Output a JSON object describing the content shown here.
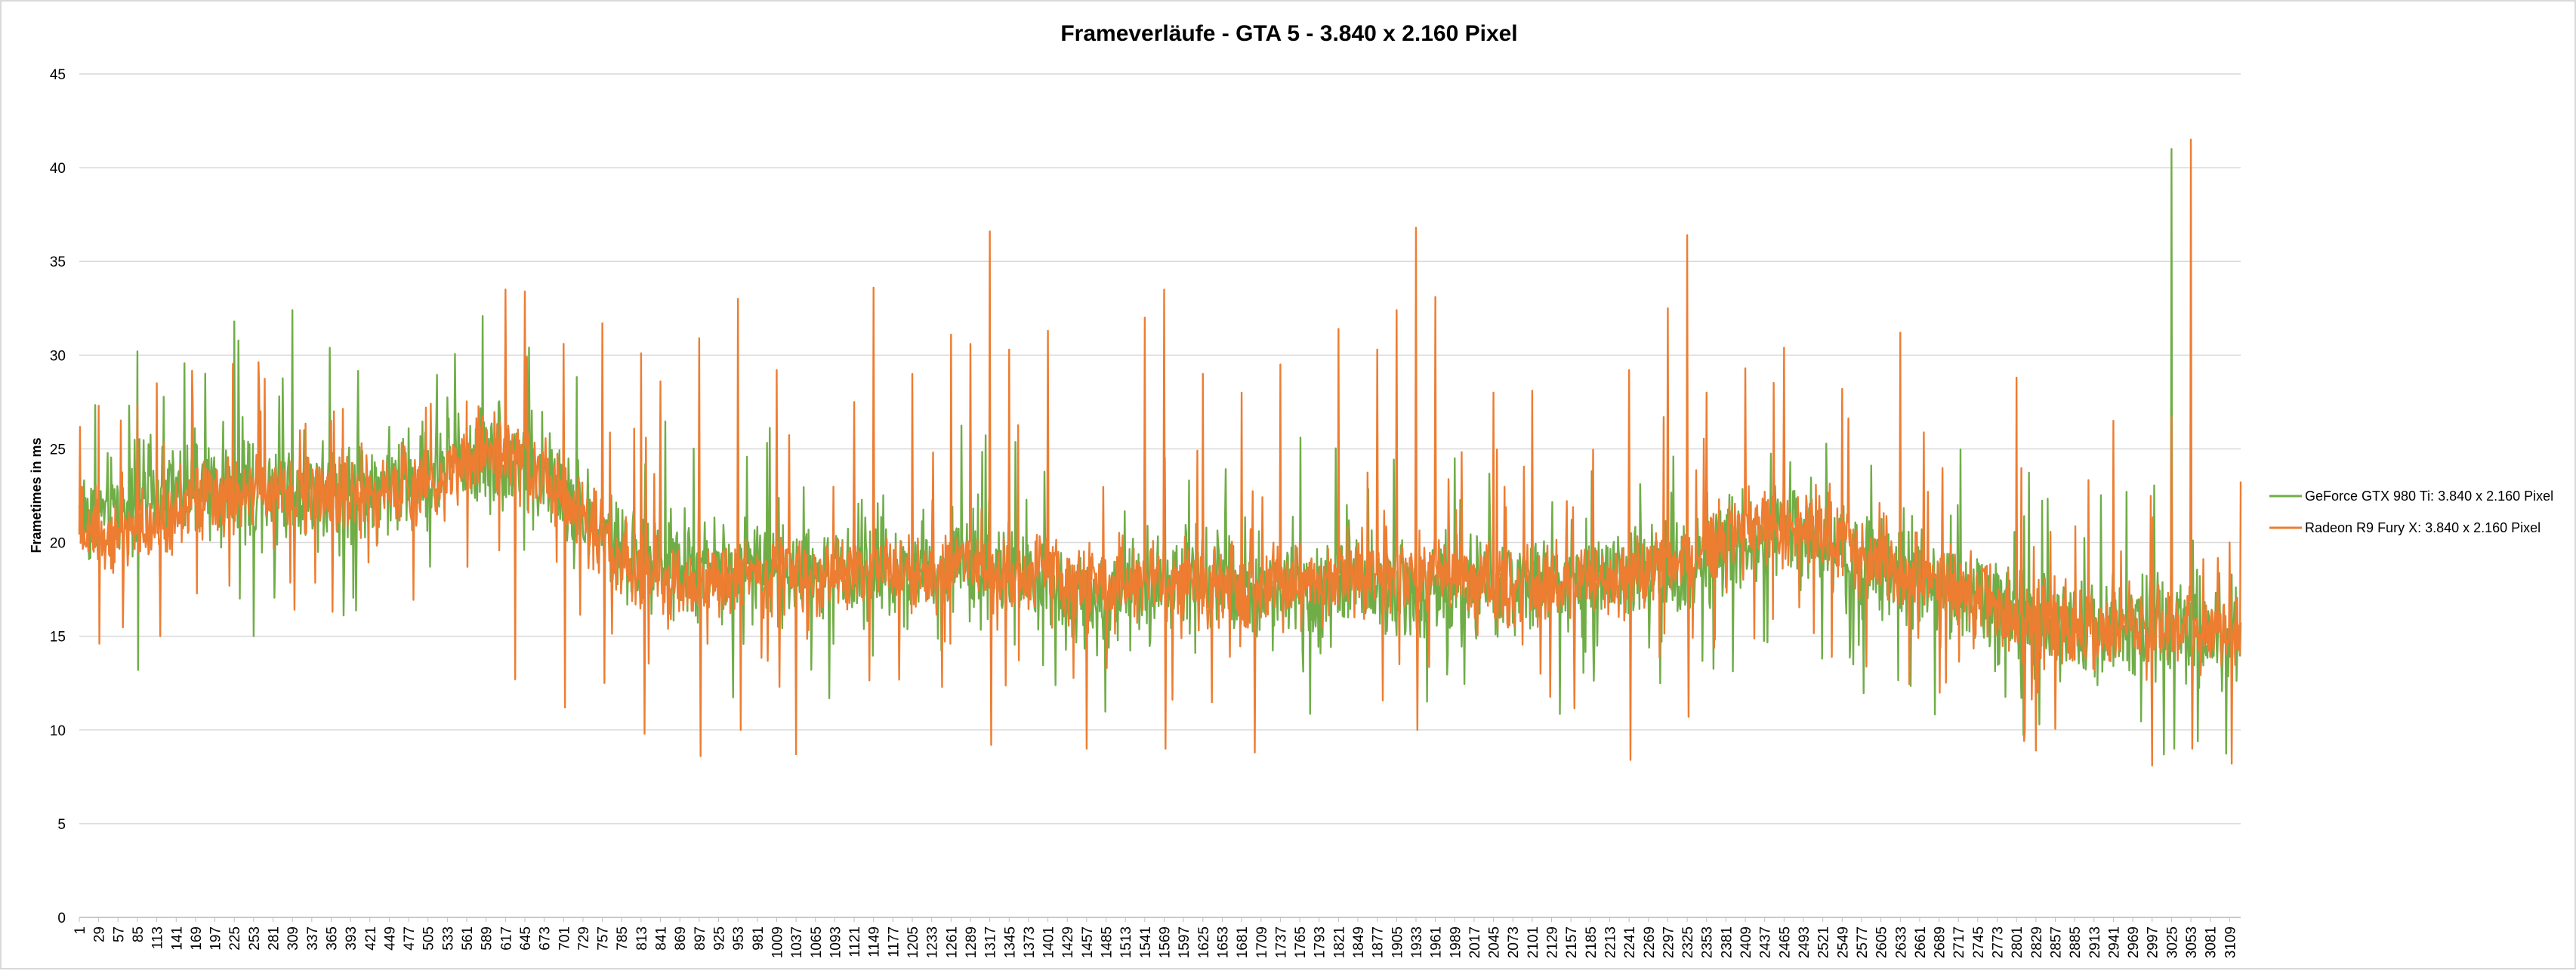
{
  "chart_data": {
    "type": "line",
    "title": "Frameverläufe - GTA 5 - 3.840 x 2.160 Pixel",
    "xlabel": "",
    "ylabel": "Frametimes in ms",
    "ylim": [
      0,
      45
    ],
    "yticks": [
      0,
      5,
      10,
      15,
      20,
      25,
      30,
      35,
      40,
      45
    ],
    "xlim": [
      1,
      3125
    ],
    "xticks": [
      1,
      29,
      57,
      85,
      113,
      141,
      169,
      197,
      225,
      253,
      281,
      309,
      337,
      365,
      393,
      421,
      449,
      477,
      505,
      533,
      561,
      589,
      617,
      645,
      673,
      701,
      729,
      757,
      785,
      813,
      841,
      869,
      897,
      925,
      953,
      981,
      1009,
      1037,
      1065,
      1093,
      1121,
      1149,
      1177,
      1205,
      1233,
      1261,
      1289,
      1317,
      1345,
      1373,
      1401,
      1429,
      1457,
      1485,
      1513,
      1541,
      1569,
      1597,
      1625,
      1653,
      1681,
      1709,
      1737,
      1765,
      1793,
      1821,
      1849,
      1877,
      1905,
      1933,
      1961,
      1989,
      2017,
      2045,
      2073,
      2101,
      2129,
      2157,
      2185,
      2213,
      2241,
      2269,
      2297,
      2325,
      2353,
      2381,
      2409,
      2437,
      2465,
      2493,
      2521,
      2549,
      2577,
      2605,
      2633,
      2661,
      2689,
      2717,
      2745,
      2773,
      2801,
      2829,
      2857,
      2885,
      2913,
      2941,
      2969,
      2997,
      3025,
      3053,
      3081,
      3109
    ],
    "grid": true,
    "legend_position": "right",
    "series": [
      {
        "name": "GeForce GTX 980 Ti: 3.840 x 2.160 Pixel",
        "color": "#70ad47",
        "baseline": [
          [
            1,
            21.5
          ],
          [
            57,
            21.8
          ],
          [
            113,
            22.5
          ],
          [
            169,
            22.8
          ],
          [
            225,
            22.8
          ],
          [
            281,
            23.2
          ],
          [
            337,
            22.8
          ],
          [
            393,
            23.0
          ],
          [
            449,
            23.0
          ],
          [
            505,
            23.5
          ],
          [
            561,
            24.5
          ],
          [
            617,
            24.8
          ],
          [
            673,
            23.5
          ],
          [
            729,
            21.5
          ],
          [
            785,
            19.5
          ],
          [
            841,
            18.8
          ],
          [
            897,
            18.5
          ],
          [
            953,
            18.5
          ],
          [
            1009,
            18.6
          ],
          [
            1065,
            18.4
          ],
          [
            1121,
            18.6
          ],
          [
            1177,
            18.6
          ],
          [
            1233,
            18.8
          ],
          [
            1289,
            18.8
          ],
          [
            1345,
            18.3
          ],
          [
            1401,
            17.5
          ],
          [
            1457,
            17.0
          ],
          [
            1513,
            17.5
          ],
          [
            1569,
            17.8
          ],
          [
            1625,
            17.6
          ],
          [
            1681,
            17.5
          ],
          [
            1737,
            17.6
          ],
          [
            1793,
            17.8
          ],
          [
            1849,
            17.8
          ],
          [
            1905,
            17.6
          ],
          [
            1961,
            17.5
          ],
          [
            2017,
            17.3
          ],
          [
            2073,
            17.6
          ],
          [
            2129,
            17.8
          ],
          [
            2185,
            17.9
          ],
          [
            2241,
            18.0
          ],
          [
            2297,
            18.3
          ],
          [
            2353,
            19.0
          ],
          [
            2409,
            20.5
          ],
          [
            2465,
            20.5
          ],
          [
            2521,
            19.8
          ],
          [
            2577,
            18.8
          ],
          [
            2633,
            18.3
          ],
          [
            2689,
            17.5
          ],
          [
            2745,
            17.0
          ],
          [
            2801,
            16.3
          ],
          [
            2857,
            15.8
          ],
          [
            2913,
            15.8
          ],
          [
            2969,
            15.8
          ],
          [
            3025,
            15.5
          ],
          [
            3081,
            15.3
          ],
          [
            3125,
            15.3
          ]
        ],
        "noise": 1.7,
        "spikes": [
          [
            85,
            30.2
          ],
          [
            86,
            13.2
          ],
          [
            225,
            31.8
          ],
          [
            253,
            15.0
          ],
          [
            309,
            32.4
          ],
          [
            617,
            31.8
          ],
          [
            3025,
            41.0
          ],
          [
            3029,
            9.0
          ]
        ]
      },
      {
        "name": "Radeon R9 Fury X: 3.840 x 2.160 Pixel",
        "color": "#ed7d31",
        "baseline": [
          [
            1,
            20.5
          ],
          [
            57,
            20.8
          ],
          [
            113,
            21.0
          ],
          [
            169,
            21.8
          ],
          [
            225,
            22.3
          ],
          [
            281,
            22.8
          ],
          [
            337,
            22.6
          ],
          [
            393,
            22.6
          ],
          [
            449,
            22.8
          ],
          [
            505,
            23.0
          ],
          [
            561,
            24.5
          ],
          [
            617,
            24.8
          ],
          [
            673,
            23.5
          ],
          [
            729,
            21.5
          ],
          [
            785,
            19.0
          ],
          [
            841,
            18.0
          ],
          [
            897,
            17.8
          ],
          [
            953,
            18.0
          ],
          [
            1009,
            18.2
          ],
          [
            1065,
            18.0
          ],
          [
            1121,
            18.3
          ],
          [
            1177,
            18.5
          ],
          [
            1233,
            18.5
          ],
          [
            1289,
            18.5
          ],
          [
            1345,
            18.5
          ],
          [
            1401,
            18.5
          ],
          [
            1457,
            17.8
          ],
          [
            1513,
            17.8
          ],
          [
            1569,
            18.0
          ],
          [
            1625,
            17.8
          ],
          [
            1681,
            17.5
          ],
          [
            1737,
            17.8
          ],
          [
            1793,
            18.0
          ],
          [
            1849,
            18.3
          ],
          [
            1905,
            18.5
          ],
          [
            1961,
            18.2
          ],
          [
            2017,
            17.8
          ],
          [
            2073,
            17.5
          ],
          [
            2129,
            17.8
          ],
          [
            2185,
            18.0
          ],
          [
            2241,
            18.3
          ],
          [
            2297,
            18.8
          ],
          [
            2353,
            19.5
          ],
          [
            2409,
            20.8
          ],
          [
            2465,
            21.0
          ],
          [
            2521,
            20.5
          ],
          [
            2577,
            19.5
          ],
          [
            2633,
            18.5
          ],
          [
            2689,
            17.8
          ],
          [
            2745,
            17.2
          ],
          [
            2801,
            16.0
          ],
          [
            2857,
            15.8
          ],
          [
            2913,
            15.5
          ],
          [
            2969,
            15.5
          ],
          [
            3025,
            15.5
          ],
          [
            3081,
            15.3
          ],
          [
            3125,
            15.5
          ]
        ],
        "noise": 1.3,
        "spikes": [
          [
            29,
            27.3
          ],
          [
            30,
            14.6
          ],
          [
            113,
            28.5
          ],
          [
            118,
            15.0
          ],
          [
            365,
            26.5
          ],
          [
            367,
            16.3
          ],
          [
            617,
            33.5
          ],
          [
            631,
            12.7
          ],
          [
            645,
            33.4
          ],
          [
            701,
            30.6
          ],
          [
            703,
            11.2
          ],
          [
            757,
            31.7
          ],
          [
            760,
            12.5
          ],
          [
            813,
            30.1
          ],
          [
            818,
            9.8
          ],
          [
            841,
            28.6
          ],
          [
            897,
            30.9
          ],
          [
            899,
            8.6
          ],
          [
            953,
            33.0
          ],
          [
            957,
            10.0
          ],
          [
            1009,
            29.2
          ],
          [
            1037,
            8.7
          ],
          [
            1121,
            27.5
          ],
          [
            1149,
            33.6
          ],
          [
            1205,
            29.0
          ],
          [
            1261,
            31.1
          ],
          [
            1289,
            30.6
          ],
          [
            1317,
            36.6
          ],
          [
            1319,
            9.2
          ],
          [
            1345,
            30.3
          ],
          [
            1401,
            31.3
          ],
          [
            1457,
            9.0
          ],
          [
            1541,
            32.0
          ],
          [
            1569,
            33.5
          ],
          [
            1571,
            9.0
          ],
          [
            1625,
            29.0
          ],
          [
            1681,
            28.0
          ],
          [
            1700,
            8.8
          ],
          [
            1737,
            29.5
          ],
          [
            1821,
            31.4
          ],
          [
            1877,
            30.3
          ],
          [
            1905,
            32.4
          ],
          [
            1933,
            36.8
          ],
          [
            1935,
            10.0
          ],
          [
            1961,
            33.1
          ],
          [
            2045,
            28.0
          ],
          [
            2101,
            28.1
          ],
          [
            2241,
            29.2
          ],
          [
            2243,
            8.4
          ],
          [
            2297,
            32.5
          ],
          [
            2325,
            36.4
          ],
          [
            2327,
            10.7
          ],
          [
            2353,
            28.0
          ],
          [
            2409,
            29.3
          ],
          [
            2465,
            30.4
          ],
          [
            2549,
            28.2
          ],
          [
            2633,
            31.2
          ],
          [
            2801,
            28.8
          ],
          [
            2829,
            8.9
          ],
          [
            2941,
            26.5
          ],
          [
            2997,
            8.1
          ],
          [
            3025,
            26.7
          ],
          [
            3053,
            41.5
          ],
          [
            3055,
            9.0
          ],
          [
            3109,
            20.0
          ],
          [
            3112,
            8.2
          ]
        ]
      }
    ]
  }
}
